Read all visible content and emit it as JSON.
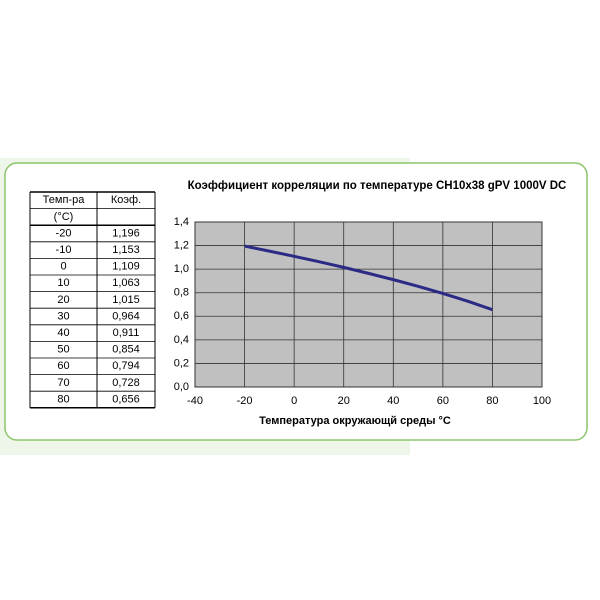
{
  "chart_data": {
    "type": "line",
    "title": "Коэффициент корреляции по температуре CH10x38 gPV 1000V DC",
    "x_label": "Температура окружающй среды  °C",
    "x": [
      -20,
      -10,
      0,
      10,
      20,
      30,
      40,
      50,
      60,
      70,
      80
    ],
    "values": [
      1.196,
      1.153,
      1.109,
      1.063,
      1.015,
      0.964,
      0.911,
      0.854,
      0.794,
      0.728,
      0.656
    ],
    "color": "#2b2b86",
    "xlim": [
      -40,
      100
    ],
    "xticks": [
      -40,
      -20,
      0,
      20,
      40,
      60,
      80,
      100
    ],
    "ylim": [
      0,
      1.4
    ],
    "yticks": [
      {
        "value": 0,
        "label": "0,0"
      },
      {
        "value": 0.2,
        "label": "0,2"
      },
      {
        "value": 0.4,
        "label": "0,4"
      },
      {
        "value": 0.6,
        "label": "0,6"
      },
      {
        "value": 0.8,
        "label": "0,8"
      },
      {
        "value": 1.0,
        "label": "1,0"
      },
      {
        "value": 1.2,
        "label": "1,2"
      },
      {
        "value": 1.4,
        "label": "1,4"
      }
    ],
    "grid": true
  },
  "table": {
    "header": [
      "Темп-ра",
      "Коэф."
    ],
    "unit": "(°C)",
    "rows": [
      [
        "-20",
        "1,196"
      ],
      [
        "-10",
        "1,153"
      ],
      [
        "0",
        "1,109"
      ],
      [
        "10",
        "1,063"
      ],
      [
        "20",
        "1,015"
      ],
      [
        "30",
        "0,964"
      ],
      [
        "40",
        "0,911"
      ],
      [
        "50",
        "0,854"
      ],
      [
        "60",
        "0,794"
      ],
      [
        "70",
        "0,728"
      ],
      [
        "80",
        "0,656"
      ]
    ]
  }
}
